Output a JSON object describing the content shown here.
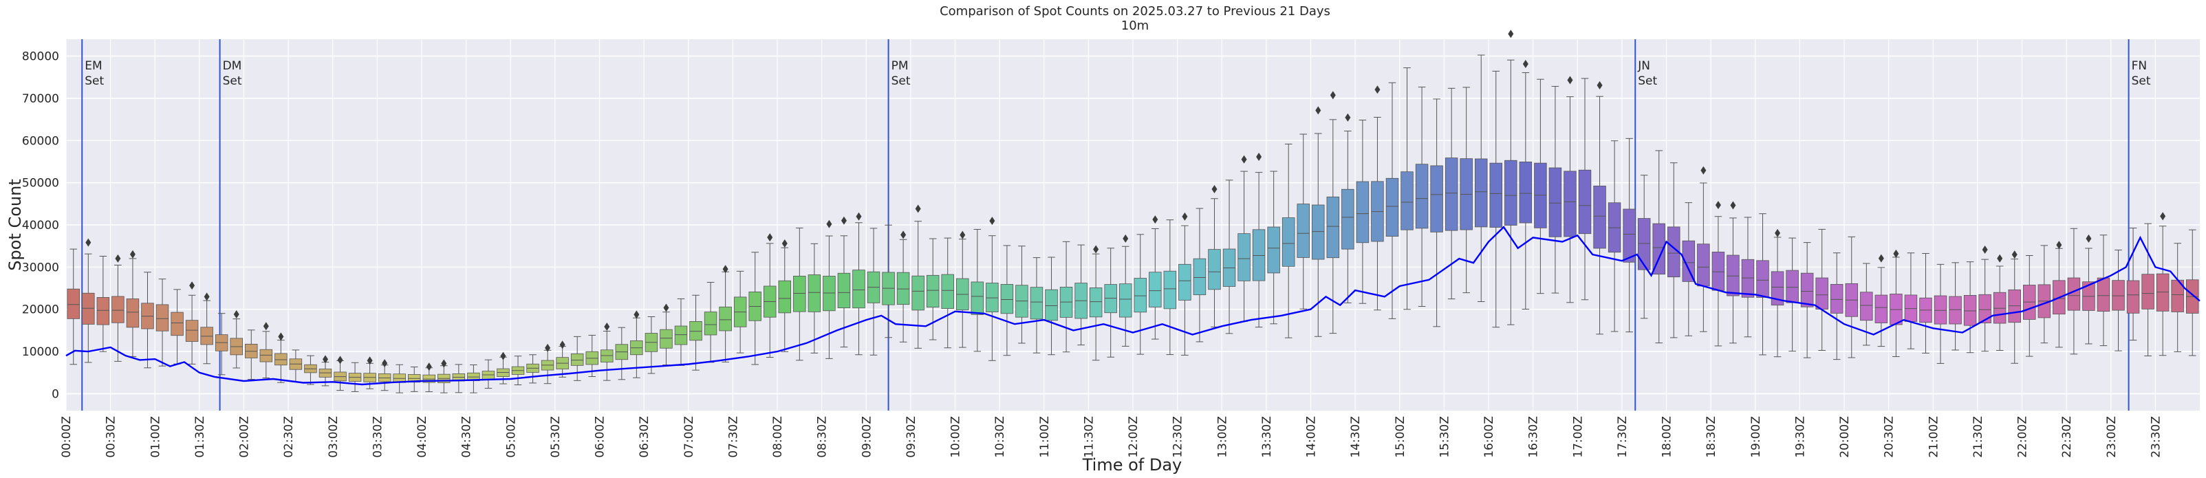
{
  "chart_data": {
    "type": "box",
    "title": "Comparison of Spot Counts on 2025.03.27 to Previous 21 Days",
    "subtitle": "10m",
    "xlabel": "Time of Day",
    "ylabel": "Spot Count",
    "ylim": [
      -4000,
      84000
    ],
    "yticks": [
      0,
      10000,
      20000,
      30000,
      40000,
      50000,
      60000,
      70000,
      80000
    ],
    "grid": true,
    "bin_minutes": 10,
    "num_bins": 144,
    "xticks": [
      "00:00Z",
      "00:30Z",
      "01:00Z",
      "01:30Z",
      "02:00Z",
      "02:30Z",
      "03:00Z",
      "03:30Z",
      "04:00Z",
      "04:30Z",
      "05:00Z",
      "05:30Z",
      "06:00Z",
      "06:30Z",
      "07:00Z",
      "07:30Z",
      "08:00Z",
      "08:30Z",
      "09:00Z",
      "09:30Z",
      "10:00Z",
      "10:30Z",
      "11:00Z",
      "11:30Z",
      "12:00Z",
      "12:30Z",
      "13:00Z",
      "13:30Z",
      "14:00Z",
      "14:30Z",
      "15:00Z",
      "15:30Z",
      "16:00Z",
      "16:30Z",
      "17:00Z",
      "17:30Z",
      "18:00Z",
      "18:30Z",
      "19:00Z",
      "19:30Z",
      "20:00Z",
      "20:30Z",
      "21:00Z",
      "21:30Z",
      "22:00Z",
      "22:30Z",
      "23:00Z",
      "23:30Z"
    ],
    "events": [
      {
        "line1": "EM",
        "line2": "Set",
        "hour": 0.18
      },
      {
        "line1": "DM",
        "line2": "Set",
        "hour": 1.73
      },
      {
        "line1": "PM",
        "line2": "Set",
        "hour": 9.25
      },
      {
        "line1": "JN",
        "line2": "Set",
        "hour": 17.65
      },
      {
        "line1": "FN",
        "line2": "Set",
        "hour": 23.2
      }
    ],
    "median_profile": [
      [
        0,
        21000
      ],
      [
        1,
        18000
      ],
      [
        1.75,
        11500
      ],
      [
        2.5,
        7000
      ],
      [
        3,
        4000
      ],
      [
        4,
        3500
      ],
      [
        4.5,
        4000
      ],
      [
        5,
        5500
      ],
      [
        6,
        9000
      ],
      [
        7,
        15000
      ],
      [
        8,
        23000
      ],
      [
        9,
        25000
      ],
      [
        10,
        24000
      ],
      [
        11,
        21000
      ],
      [
        12,
        23000
      ],
      [
        13,
        30000
      ],
      [
        14,
        39000
      ],
      [
        15,
        45000
      ],
      [
        15.5,
        47000
      ],
      [
        16,
        47000
      ],
      [
        16.5,
        47000
      ],
      [
        17,
        44000
      ],
      [
        17.75,
        35000
      ],
      [
        18.5,
        29000
      ],
      [
        19.5,
        24000
      ],
      [
        20.5,
        20000
      ],
      [
        21.5,
        20000
      ],
      [
        22.5,
        23000
      ],
      [
        23.5,
        24000
      ],
      [
        24,
        23000
      ]
    ],
    "series": [
      {
        "name": "2025.03.27",
        "color": "#0000ff",
        "points": [
          [
            0,
            9000
          ],
          [
            0.1,
            10200
          ],
          [
            0.25,
            10000
          ],
          [
            0.5,
            11000
          ],
          [
            0.67,
            9000
          ],
          [
            0.83,
            8000
          ],
          [
            1.0,
            8200
          ],
          [
            1.17,
            6500
          ],
          [
            1.33,
            7500
          ],
          [
            1.5,
            5000
          ],
          [
            1.67,
            4000
          ],
          [
            2.0,
            3000
          ],
          [
            2.33,
            3500
          ],
          [
            2.67,
            2600
          ],
          [
            3.0,
            2800
          ],
          [
            3.33,
            2200
          ],
          [
            3.67,
            2700
          ],
          [
            4.0,
            3000
          ],
          [
            4.33,
            3100
          ],
          [
            4.67,
            3300
          ],
          [
            5.0,
            3500
          ],
          [
            5.33,
            4200
          ],
          [
            5.67,
            4800
          ],
          [
            6.0,
            5500
          ],
          [
            6.33,
            6000
          ],
          [
            6.67,
            6500
          ],
          [
            7.0,
            7000
          ],
          [
            7.33,
            7800
          ],
          [
            7.67,
            8800
          ],
          [
            8.0,
            10000
          ],
          [
            8.33,
            12000
          ],
          [
            8.67,
            15000
          ],
          [
            9.0,
            17500
          ],
          [
            9.17,
            18500
          ],
          [
            9.33,
            16500
          ],
          [
            9.67,
            16000
          ],
          [
            10.0,
            19500
          ],
          [
            10.33,
            19000
          ],
          [
            10.67,
            16500
          ],
          [
            11.0,
            17500
          ],
          [
            11.33,
            15000
          ],
          [
            11.67,
            16500
          ],
          [
            12.0,
            14500
          ],
          [
            12.33,
            16500
          ],
          [
            12.67,
            14000
          ],
          [
            13.0,
            16000
          ],
          [
            13.33,
            17500
          ],
          [
            13.67,
            18500
          ],
          [
            14.0,
            20000
          ],
          [
            14.17,
            23000
          ],
          [
            14.33,
            21000
          ],
          [
            14.5,
            24500
          ],
          [
            14.83,
            23000
          ],
          [
            15.0,
            25500
          ],
          [
            15.33,
            27000
          ],
          [
            15.67,
            32000
          ],
          [
            15.83,
            31000
          ],
          [
            16.0,
            36000
          ],
          [
            16.17,
            39500
          ],
          [
            16.33,
            34500
          ],
          [
            16.5,
            37000
          ],
          [
            16.83,
            36000
          ],
          [
            17.0,
            37500
          ],
          [
            17.17,
            33000
          ],
          [
            17.5,
            31500
          ],
          [
            17.67,
            33000
          ],
          [
            17.83,
            28000
          ],
          [
            18.0,
            36000
          ],
          [
            18.17,
            33000
          ],
          [
            18.33,
            26000
          ],
          [
            18.67,
            24000
          ],
          [
            19.0,
            23500
          ],
          [
            19.33,
            22000
          ],
          [
            19.67,
            21000
          ],
          [
            20.0,
            16500
          ],
          [
            20.33,
            14000
          ],
          [
            20.67,
            17500
          ],
          [
            21.0,
            15500
          ],
          [
            21.33,
            14500
          ],
          [
            21.67,
            18500
          ],
          [
            22.0,
            19500
          ],
          [
            22.33,
            22000
          ],
          [
            22.67,
            25000
          ],
          [
            23.0,
            28000
          ],
          [
            23.17,
            30000
          ],
          [
            23.33,
            37000
          ],
          [
            23.5,
            30000
          ],
          [
            23.67,
            29000
          ],
          [
            23.83,
            25000
          ],
          [
            24.0,
            22000
          ]
        ]
      }
    ]
  }
}
